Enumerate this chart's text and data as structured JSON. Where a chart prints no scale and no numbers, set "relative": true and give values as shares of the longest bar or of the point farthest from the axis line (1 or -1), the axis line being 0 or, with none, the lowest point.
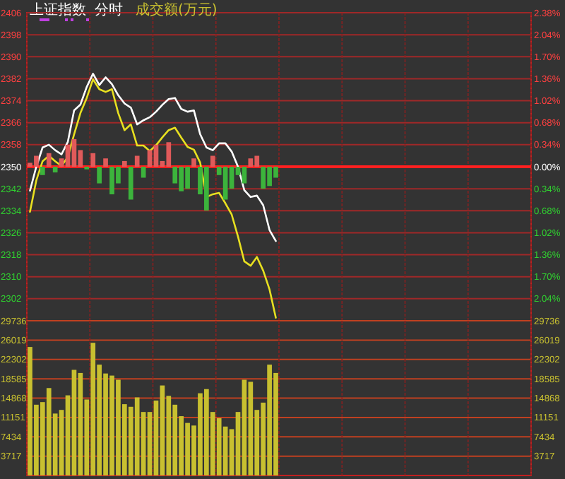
{
  "chart_data": [
    {
      "type": "line",
      "title": "上证指数",
      "subtitle": "分时",
      "annotations": [
        "成交额(万元)"
      ],
      "categories": [
        null,
        null,
        null,
        null,
        null,
        null,
        null,
        null,
        null,
        null,
        null,
        null,
        null,
        null,
        null,
        null,
        null,
        null,
        null,
        null,
        null,
        null,
        null,
        null,
        null,
        null,
        null,
        null,
        null,
        null,
        null,
        null,
        null,
        null,
        null,
        null,
        null,
        null,
        null,
        null,
        null,
        null,
        null,
        null,
        null,
        null,
        null,
        null,
        null,
        null,
        null,
        null,
        null,
        null,
        null,
        null,
        null,
        null,
        null,
        null,
        null,
        null,
        null,
        null,
        null,
        null,
        null,
        null,
        null,
        null,
        null,
        null,
        null,
        null,
        null,
        null,
        null,
        null,
        null,
        null
      ],
      "ylim": [
        2294,
        2406
      ],
      "yticks": [
        2302,
        2310,
        2318,
        2326,
        2334,
        2342,
        2350,
        2358,
        2366,
        2374,
        2382,
        2390,
        2398,
        2406
      ],
      "y2lim": [
        -2.38,
        2.38
      ],
      "y2ticks": [
        {
          "value": 2.38,
          "label": "2.38%"
        },
        {
          "value": 2.04,
          "label": "2.04%"
        },
        {
          "value": 1.7,
          "label": "1.70%"
        },
        {
          "value": 1.36,
          "label": "1.36%"
        },
        {
          "value": 1.02,
          "label": "1.02%"
        },
        {
          "value": 0.68,
          "label": "0.68%"
        },
        {
          "value": 0.34,
          "label": "0.34%"
        },
        {
          "value": 0,
          "label": "0.00%"
        },
        {
          "value": -0.34,
          "label": "0.34%"
        },
        {
          "value": -0.68,
          "label": "0.68%"
        },
        {
          "value": -1.02,
          "label": "1.02%"
        },
        {
          "value": -1.36,
          "label": "1.36%"
        },
        {
          "value": -1.7,
          "label": "1.70%"
        },
        {
          "value": -2.04,
          "label": "2.04%"
        }
      ],
      "grid": true,
      "ref_lines": [
        {
          "axis": "y",
          "value": 2350,
          "color": "#ff2020"
        }
      ],
      "series": [
        {
          "color": "#ffffff",
          "values": [
            2341.3,
            2350,
            2357,
            2358,
            2356,
            2354.5,
            2359,
            2370.5,
            2372.6,
            2379,
            2383.8,
            2379.7,
            2382.5,
            2380,
            2376,
            2373,
            2371.5,
            2365.4,
            2366.9,
            2368,
            2370,
            2372.5,
            2374.6,
            2375,
            2371,
            2370,
            2370.5,
            2361.8,
            2357,
            2356,
            2358.5,
            2358.5,
            2355.5,
            2350,
            2341.5,
            2339,
            2339.5,
            2336,
            2327,
            2323,
            null,
            null,
            null,
            null,
            null,
            null,
            null,
            null,
            null,
            null,
            null,
            null,
            null,
            null,
            null,
            null,
            null,
            null,
            null,
            null,
            null,
            null,
            null,
            null,
            null,
            null,
            null,
            null,
            null,
            null,
            null,
            null,
            null,
            null,
            null,
            null,
            null,
            null,
            null,
            null
          ]
        },
        {
          "color": "#e8e020",
          "values": [
            2333.6,
            2345,
            2352,
            2354,
            2352,
            2350.3,
            2353.5,
            2361.8,
            2369.5,
            2375,
            2381.8,
            2378.2,
            2377.2,
            2378.2,
            2369.5,
            2363.3,
            2365.4,
            2357.7,
            2357.7,
            2355.7,
            2357.8,
            2360.7,
            2363.3,
            2364.2,
            2360.6,
            2357.2,
            2356.2,
            2351.5,
            2339,
            2340,
            2340.5,
            2336.7,
            2332.6,
            2324.6,
            2315.6,
            2314,
            2317.2,
            2312.2,
            2305.4,
            2295.1,
            null,
            null,
            null,
            null,
            null,
            null,
            null,
            null,
            null,
            null,
            null,
            null,
            null,
            null,
            null,
            null,
            null,
            null,
            null,
            null,
            null,
            null,
            null,
            null,
            null,
            null,
            null,
            null,
            null,
            null,
            null,
            null,
            null,
            null,
            null,
            null,
            null,
            null,
            null,
            null
          ]
        }
      ]
    },
    {
      "type": "bar",
      "relative": true,
      "categories": [
        null,
        null,
        null,
        null,
        null,
        null,
        null,
        null,
        null,
        null,
        null,
        null,
        null,
        null,
        null,
        null,
        null,
        null,
        null,
        null,
        null,
        null,
        null,
        null,
        null,
        null,
        null,
        null,
        null,
        null,
        null,
        null,
        null,
        null,
        null,
        null,
        null,
        null,
        null,
        null,
        null,
        null,
        null,
        null,
        null,
        null,
        null,
        null,
        null,
        null,
        null,
        null,
        null,
        null,
        null,
        null,
        null,
        null,
        null,
        null,
        null,
        null,
        null,
        null,
        null,
        null,
        null,
        null,
        null,
        null,
        null,
        null,
        null,
        null,
        null,
        null,
        null,
        null,
        null,
        null
      ],
      "values": [
        0.09,
        0.25,
        -0.19,
        0.31,
        -0.13,
        0.19,
        0.5,
        0.63,
        0.38,
        -0.06,
        0.31,
        -0.38,
        0.19,
        -0.63,
        -0.38,
        0.13,
        -0.75,
        0.25,
        -0.25,
        0.38,
        0.5,
        0.13,
        0.56,
        -0.38,
        -0.56,
        -0.5,
        0.19,
        -0.63,
        -1,
        0.25,
        -0.19,
        -0.75,
        -0.5,
        -0.19,
        -0.38,
        0.19,
        0.25,
        -0.5,
        -0.44,
        -0.25,
        null,
        null,
        null,
        null,
        null,
        null,
        null,
        null,
        null,
        null,
        null,
        null,
        null,
        null,
        null,
        null,
        null,
        null,
        null,
        null,
        null,
        null,
        null,
        null,
        null,
        null,
        null,
        null,
        null,
        null,
        null,
        null,
        null,
        null,
        null,
        null,
        null,
        null,
        null,
        null
      ],
      "colors": [
        "#e05a5a",
        "#e05a5a",
        "#3cb43c",
        "#e05a5a",
        "#3cb43c",
        "#e05a5a",
        "#e05a5a",
        "#e05a5a",
        "#e05a5a",
        "#3cb43c",
        "#e05a5a",
        "#3cb43c",
        "#e05a5a",
        "#3cb43c",
        "#3cb43c",
        "#e05a5a",
        "#3cb43c",
        "#e05a5a",
        "#3cb43c",
        "#e05a5a",
        "#e05a5a",
        "#e05a5a",
        "#e05a5a",
        "#3cb43c",
        "#3cb43c",
        "#3cb43c",
        "#e05a5a",
        "#3cb43c",
        "#3cb43c",
        "#e05a5a",
        "#3cb43c",
        "#3cb43c",
        "#3cb43c",
        "#3cb43c",
        "#3cb43c",
        "#e05a5a",
        "#e05a5a",
        "#3cb43c",
        "#3cb43c",
        "#3cb43c",
        null,
        null,
        null,
        null,
        null,
        null,
        null,
        null,
        null,
        null,
        null,
        null,
        null,
        null,
        null,
        null,
        null,
        null,
        null,
        null,
        null,
        null,
        null,
        null,
        null,
        null,
        null,
        null,
        null,
        null,
        null,
        null,
        null,
        null,
        null,
        null,
        null,
        null,
        null,
        null
      ]
    },
    {
      "type": "bar",
      "color": "#c8c030",
      "categories": [
        null,
        null,
        null,
        null,
        null,
        null,
        null,
        null,
        null,
        null,
        null,
        null,
        null,
        null,
        null,
        null,
        null,
        null,
        null,
        null,
        null,
        null,
        null,
        null,
        null,
        null,
        null,
        null,
        null,
        null,
        null,
        null,
        null,
        null,
        null,
        null,
        null,
        null,
        null,
        null,
        null,
        null,
        null,
        null,
        null,
        null,
        null,
        null,
        null,
        null,
        null,
        null,
        null,
        null,
        null,
        null,
        null,
        null,
        null,
        null,
        null,
        null,
        null,
        null,
        null,
        null,
        null,
        null,
        null,
        null,
        null,
        null,
        null,
        null,
        null,
        null,
        null,
        null,
        null,
        null
      ],
      "ylim": [
        0,
        29736
      ],
      "yticks": [
        3717,
        7434,
        11151,
        14868,
        18585,
        22302,
        26019,
        29736
      ],
      "y2lim": [
        0,
        29736
      ],
      "y2ticks": [
        3717,
        7434,
        11151,
        14868,
        18585,
        22302,
        26019,
        29736
      ],
      "grid": true,
      "values": [
        24700,
        13600,
        14100,
        16800,
        11900,
        12600,
        15400,
        20300,
        19700,
        14600,
        25500,
        21300,
        19600,
        19200,
        18400,
        13700,
        13200,
        15000,
        12200,
        12200,
        14400,
        17300,
        15300,
        13600,
        11400,
        10100,
        9600,
        15800,
        16600,
        12200,
        11000,
        9400,
        8900,
        12200,
        18400,
        18000,
        12600,
        14000,
        21300,
        19700,
        null,
        null,
        null,
        null,
        null,
        null,
        null,
        null,
        null,
        null,
        null,
        null,
        null,
        null,
        null,
        null,
        null,
        null,
        null,
        null,
        null,
        null,
        null,
        null,
        null,
        null,
        null,
        null,
        null,
        null,
        null,
        null,
        null,
        null,
        null,
        null,
        null,
        null,
        null,
        null
      ]
    }
  ]
}
